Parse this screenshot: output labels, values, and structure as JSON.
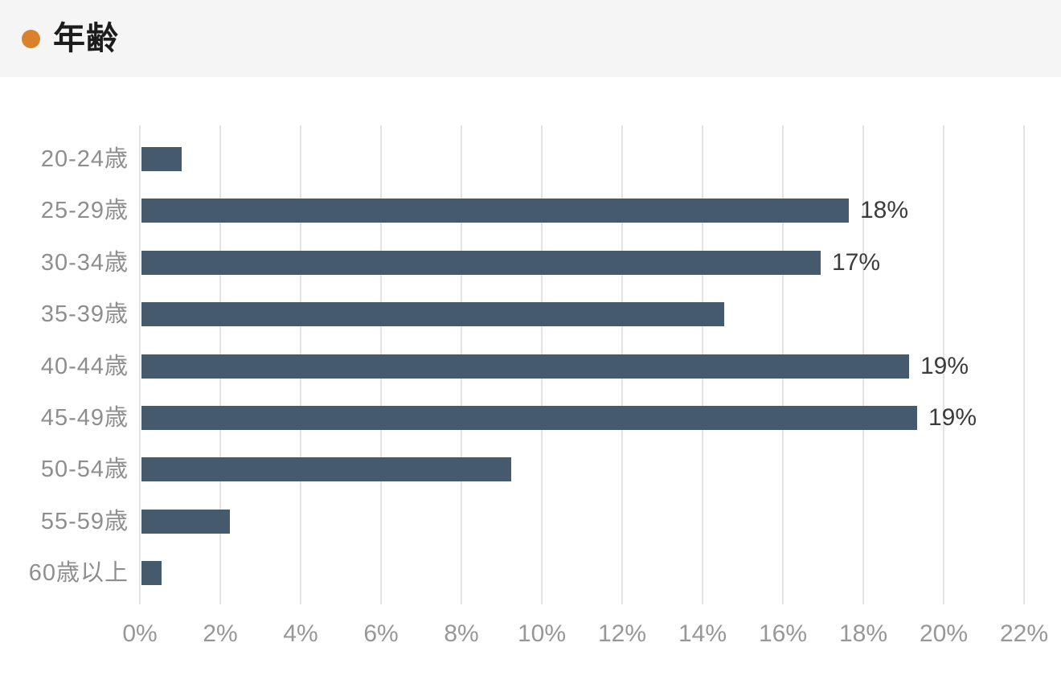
{
  "header": {
    "title": "年齢",
    "bullet_color": "#d9822b",
    "background": "#f5f5f5"
  },
  "chart_data": {
    "type": "bar",
    "orientation": "horizontal",
    "title": "年齢",
    "categories": [
      "20-24歳",
      "25-29歳",
      "30-34歳",
      "35-39歳",
      "40-44歳",
      "45-49歳",
      "50-54歳",
      "55-59歳",
      "60歳以上"
    ],
    "values": [
      1.0,
      17.6,
      16.9,
      14.5,
      19.1,
      19.3,
      9.2,
      2.2,
      0.5
    ],
    "value_labels": [
      "",
      "18%",
      "17%",
      "",
      "19%",
      "19%",
      "",
      "",
      ""
    ],
    "xlabel": "",
    "ylabel": "",
    "xlim": [
      0,
      22
    ],
    "x_tick_values": [
      0,
      2,
      4,
      6,
      8,
      10,
      12,
      14,
      16,
      18,
      20,
      22
    ],
    "x_tick_labels": [
      "0%",
      "2%",
      "4%",
      "6%",
      "8%",
      "10%",
      "12%",
      "14%",
      "16%",
      "18%",
      "20%",
      "22%"
    ],
    "grid": "vertical-only",
    "legend": "none",
    "bar_color": "#465a6e",
    "gridline_color": "#e3e3e3",
    "category_label_color": "#8e8e8e",
    "tick_label_color": "#979797",
    "value_label_color": "#3c3c3c"
  }
}
